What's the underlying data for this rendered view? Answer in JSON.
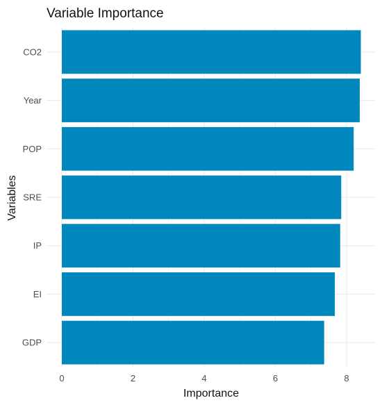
{
  "chart_data": {
    "type": "bar",
    "orientation": "horizontal",
    "title": "Variable Importance",
    "xlabel": "Importance",
    "ylabel": "Variables",
    "categories": [
      "CO2",
      "Year",
      "POP",
      "SRE",
      "IP",
      "EI",
      "GDP"
    ],
    "values": [
      8.4,
      8.37,
      8.2,
      7.85,
      7.82,
      7.67,
      7.37
    ],
    "xlim": [
      0,
      8.4
    ],
    "xticks": [
      0,
      2,
      4,
      6,
      8
    ],
    "grid": true,
    "bar_color": "#0087BB",
    "grid_color": "#EBEBEB",
    "background": "#FFFFFF"
  }
}
